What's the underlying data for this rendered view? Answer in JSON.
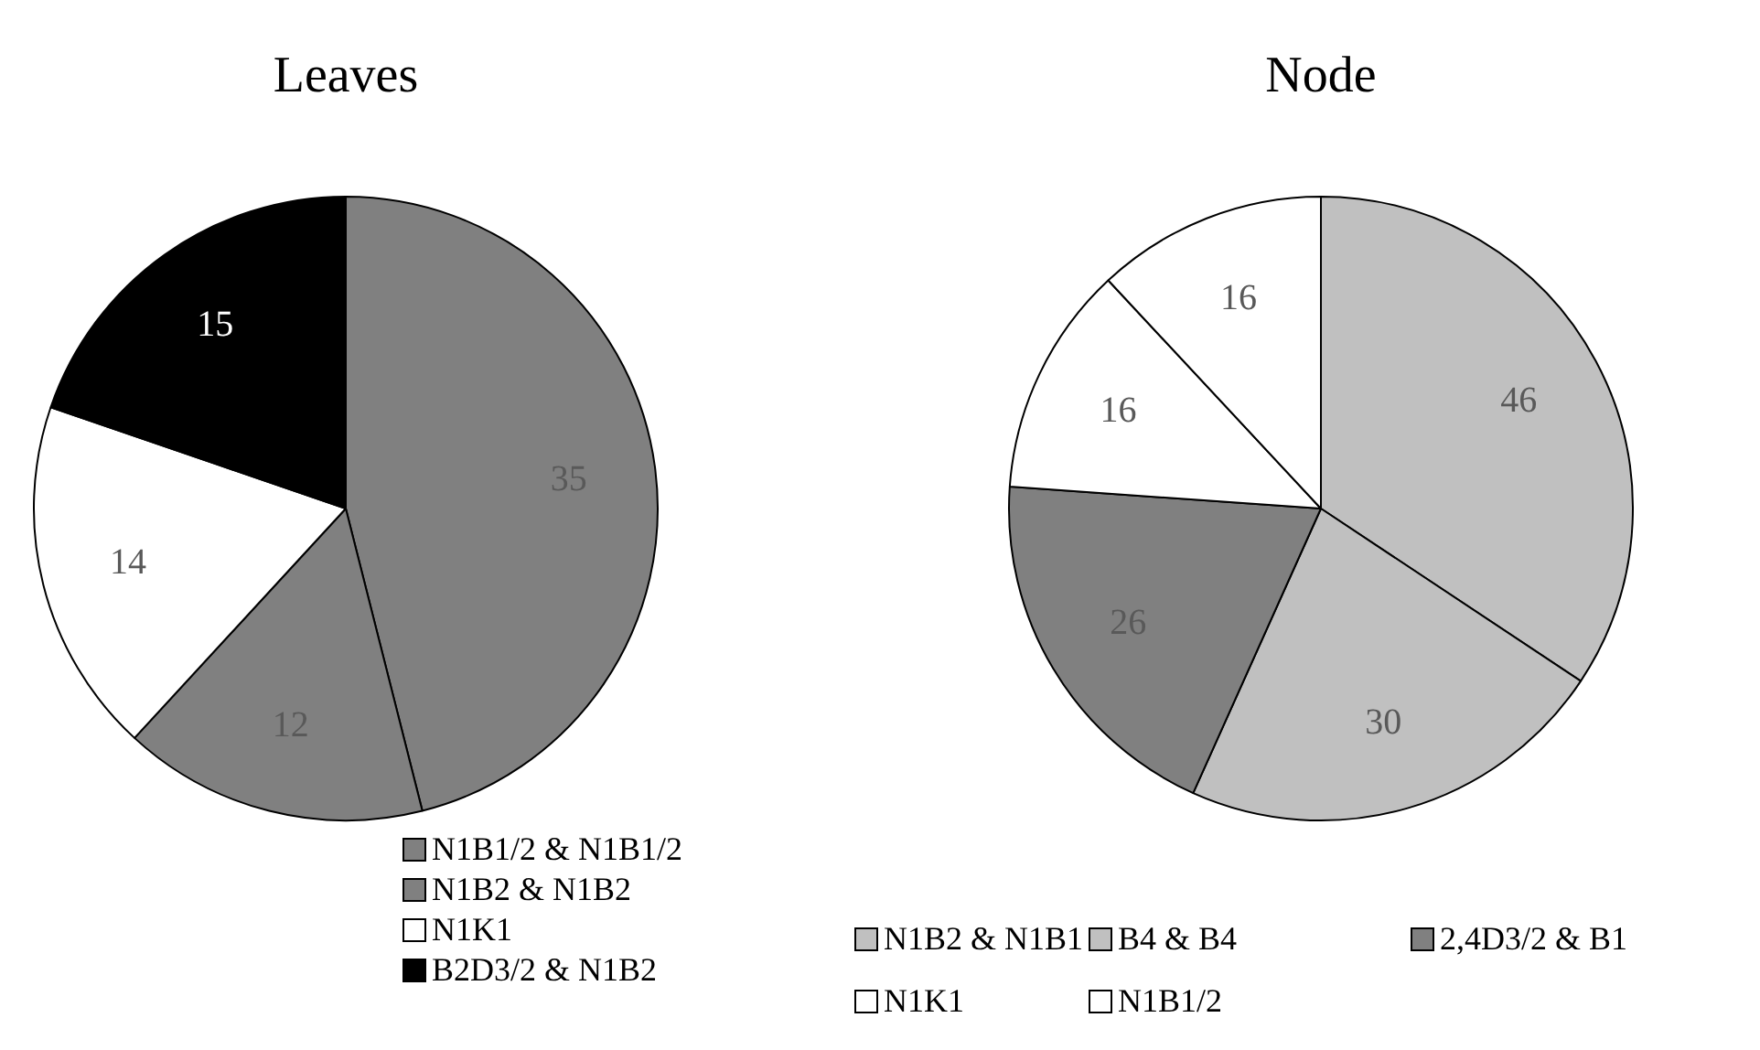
{
  "chart_data": [
    {
      "type": "pie",
      "title": "Leaves",
      "categories": [
        "N1B1/2 & N1B1/2",
        "N1B2 & N1B2",
        "N1K1",
        "B2D3/2 & N1B2"
      ],
      "values": [
        35,
        12,
        14,
        15
      ],
      "colors": [
        "#808080",
        "#808080",
        "#ffffff",
        "#000000"
      ],
      "data_labels": true,
      "legend": "bottom"
    },
    {
      "type": "pie",
      "title": "Node",
      "categories": [
        "N1B2 & N1B1",
        "B4 & B4",
        "2,4D3/2 & B1",
        "N1K1",
        "N1B1/2"
      ],
      "values": [
        46,
        30,
        26,
        16,
        16
      ],
      "colors": [
        "#c0c0c0",
        "#c0c0c0",
        "#808080",
        "#ffffff",
        "#ffffff"
      ],
      "data_labels": true,
      "legend": "bottom"
    }
  ]
}
